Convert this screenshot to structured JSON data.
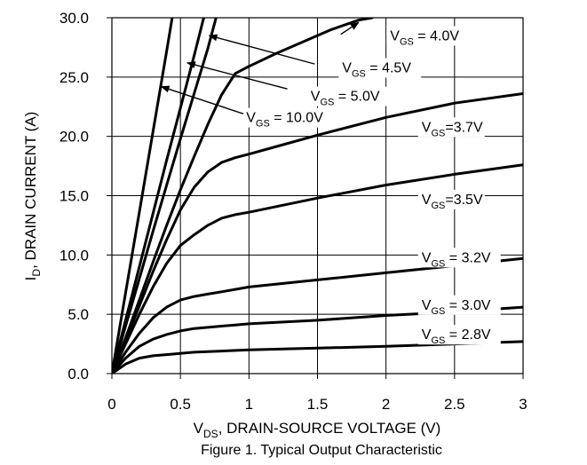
{
  "chart_data": {
    "type": "line",
    "caption": "Figure 1. Typical Output Characteristic",
    "xlabel": {
      "main": "V",
      "sub": "DS",
      "rest": ", DRAIN-SOURCE VOLTAGE (V)"
    },
    "ylabel": {
      "main": "I",
      "sub": "D",
      "rest": ", DRAIN CURRENT (A)"
    },
    "xlim": [
      0,
      3
    ],
    "ylim": [
      0,
      30
    ],
    "xticks": [
      0,
      0.5,
      1,
      1.5,
      2,
      2.5,
      3
    ],
    "xtick_labels": [
      "0",
      "0.5",
      "1",
      "1.5",
      "2",
      "2.5",
      "3"
    ],
    "yticks": [
      0,
      5,
      10,
      15,
      20,
      25,
      30
    ],
    "ytick_labels": [
      "0.0",
      "5.0",
      "10.0",
      "15.0",
      "20.0",
      "25.0",
      "30.0"
    ],
    "grid": true,
    "series": [
      {
        "name": "VGS = 10.0V",
        "label": {
          "pre": "V",
          "sub": "GS",
          "post": " = 10.0V"
        },
        "x": [
          0,
          0.1,
          0.2,
          0.3,
          0.4,
          0.44
        ],
        "y": [
          0,
          6.8,
          13.6,
          20.4,
          27.2,
          30
        ]
      },
      {
        "name": "VGS = 5.0V",
        "label": {
          "pre": "V",
          "sub": "GS",
          "post": " = 5.0V"
        },
        "x": [
          0,
          0.1,
          0.2,
          0.3,
          0.4,
          0.5,
          0.6,
          0.67
        ],
        "y": [
          0,
          4.5,
          9.0,
          13.5,
          18.0,
          22.4,
          26.8,
          30
        ]
      },
      {
        "name": "VGS = 4.5V",
        "label": {
          "pre": "V",
          "sub": "GS",
          "post": " = 4.5V"
        },
        "x": [
          0,
          0.1,
          0.2,
          0.3,
          0.4,
          0.5,
          0.6,
          0.7,
          0.76
        ],
        "y": [
          0,
          4.0,
          8.0,
          12.0,
          15.9,
          19.8,
          23.6,
          27.4,
          30
        ]
      },
      {
        "name": "VGS = 4.0V",
        "label": {
          "pre": "V",
          "sub": "GS",
          "post": " = 4.0V"
        },
        "x": [
          0,
          0.1,
          0.2,
          0.3,
          0.4,
          0.5,
          0.6,
          0.7,
          0.8,
          0.9,
          1.0,
          1.2,
          1.4,
          1.6,
          1.8,
          1.9
        ],
        "y": [
          0,
          3.0,
          6.2,
          9.4,
          12.5,
          15.5,
          18.3,
          21.0,
          23.5,
          25.3,
          25.9,
          27.0,
          28.0,
          29.0,
          29.8,
          30.0
        ]
      },
      {
        "name": "VGS=3.7V",
        "label": {
          "pre": "V",
          "sub": "GS",
          "post": "=3.7V"
        },
        "x": [
          0,
          0.1,
          0.2,
          0.3,
          0.4,
          0.5,
          0.6,
          0.7,
          0.8,
          0.9,
          1.0,
          1.25,
          1.5,
          2.0,
          2.5,
          3.0
        ],
        "y": [
          0,
          2.8,
          5.7,
          8.6,
          11.3,
          13.8,
          15.7,
          17.0,
          17.8,
          18.2,
          18.5,
          19.3,
          20.1,
          21.6,
          22.8,
          23.6
        ]
      },
      {
        "name": "VGS=3.5V",
        "label": {
          "pre": "V",
          "sub": "GS",
          "post": "=3.5V"
        },
        "x": [
          0,
          0.1,
          0.2,
          0.3,
          0.4,
          0.5,
          0.6,
          0.7,
          0.8,
          0.9,
          1.0,
          1.5,
          2.0,
          2.5,
          3.0
        ],
        "y": [
          0,
          2.5,
          5.0,
          7.3,
          9.3,
          10.8,
          11.7,
          12.5,
          13.1,
          13.4,
          13.6,
          14.8,
          15.9,
          16.8,
          17.6
        ]
      },
      {
        "name": "VGS = 3.2V",
        "label": {
          "pre": "V",
          "sub": "GS",
          "post": " = 3.2V"
        },
        "x": [
          0,
          0.1,
          0.2,
          0.3,
          0.4,
          0.5,
          0.6,
          0.7,
          0.8,
          0.9,
          1.0,
          1.5,
          2.0,
          2.5,
          3.0
        ],
        "y": [
          0,
          1.8,
          3.4,
          4.7,
          5.6,
          6.2,
          6.5,
          6.7,
          6.9,
          7.1,
          7.3,
          7.9,
          8.5,
          9.1,
          9.7
        ]
      },
      {
        "name": "VGS = 3.0V",
        "label": {
          "pre": "V",
          "sub": "GS",
          "post": " = 3.0V"
        },
        "x": [
          0,
          0.1,
          0.2,
          0.3,
          0.4,
          0.5,
          0.6,
          0.7,
          0.8,
          0.9,
          1.0,
          1.5,
          2.0,
          2.5,
          3.0
        ],
        "y": [
          0,
          1.3,
          2.3,
          2.9,
          3.3,
          3.6,
          3.8,
          3.9,
          4.0,
          4.1,
          4.2,
          4.5,
          4.9,
          5.2,
          5.6
        ]
      },
      {
        "name": "VGS = 2.8V",
        "label": {
          "pre": "V",
          "sub": "GS",
          "post": " = 2.8V"
        },
        "x": [
          0,
          0.1,
          0.2,
          0.3,
          0.4,
          0.5,
          0.6,
          0.7,
          0.8,
          1.0,
          1.5,
          2.0,
          2.5,
          3.0
        ],
        "y": [
          0,
          0.8,
          1.3,
          1.5,
          1.6,
          1.7,
          1.8,
          1.85,
          1.9,
          2.0,
          2.15,
          2.3,
          2.5,
          2.7
        ]
      }
    ]
  }
}
